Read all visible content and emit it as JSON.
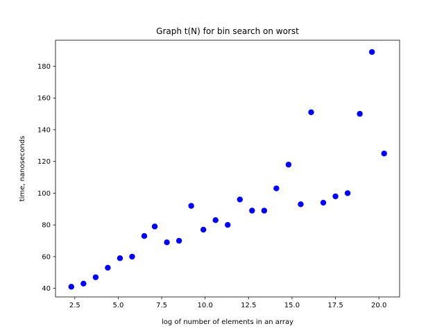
{
  "chart_data": {
    "type": "scatter",
    "title": "Graph t(N) for bin search on worst",
    "xlabel": "log of number of elements in an array",
    "ylabel": "time, nanoseconds",
    "xlim": [
      1.39,
      21.19
    ],
    "ylim": [
      34.6,
      196.4
    ],
    "x_ticks": [
      "2.5",
      "5.0",
      "7.5",
      "10.0",
      "12.5",
      "15.0",
      "17.5",
      "20.0"
    ],
    "x_tick_values": [
      2.5,
      5.0,
      7.5,
      10.0,
      12.5,
      15.0,
      17.5,
      20.0
    ],
    "y_ticks": [
      "40",
      "60",
      "80",
      "100",
      "120",
      "140",
      "160",
      "180"
    ],
    "y_tick_values": [
      40,
      60,
      80,
      100,
      120,
      140,
      160,
      180
    ],
    "marker_color": "#0000ff",
    "series": [
      {
        "x": [
          2.3,
          3.0,
          3.7,
          4.4,
          5.1,
          5.8,
          6.5,
          7.1,
          7.8,
          8.5,
          9.2,
          9.9,
          10.6,
          11.3,
          12.0,
          12.7,
          13.4,
          14.1,
          14.8,
          15.5,
          16.1,
          16.8,
          17.5,
          18.2,
          18.9,
          19.6,
          20.3
        ],
        "y": [
          41,
          43,
          47,
          53,
          59,
          60,
          73,
          79,
          69,
          70,
          92,
          77,
          83,
          80,
          96,
          89,
          89,
          103,
          118,
          93,
          151,
          94,
          98,
          100,
          150,
          189,
          125
        ]
      }
    ]
  }
}
